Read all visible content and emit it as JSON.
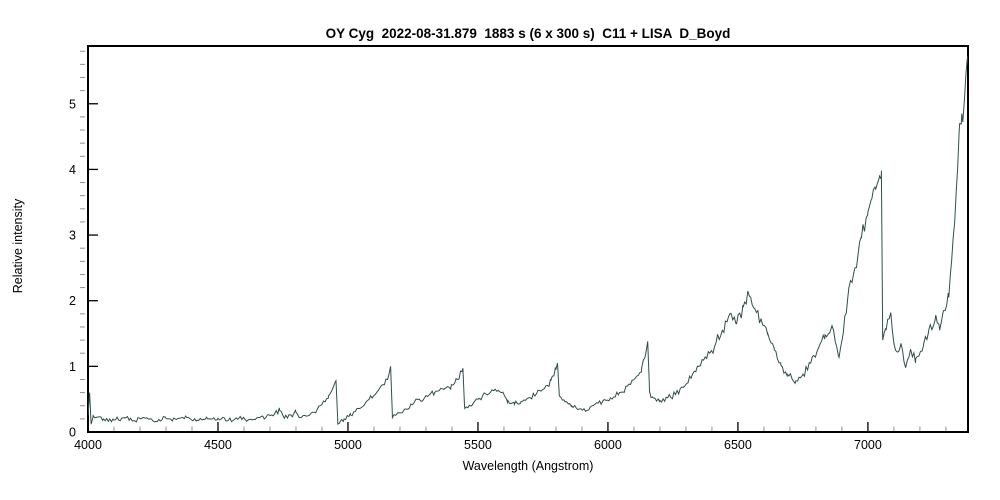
{
  "page": {
    "background": "#ffffff"
  },
  "chart_data": {
    "type": "line",
    "title": "OY Cyg  2022-08-31.879  1883 s (6 x 300 s)  C11 + LISA  D_Boyd",
    "xlabel": "Wavelength (Angstrom)",
    "ylabel": "Relative intensity",
    "xlim": [
      4000,
      7385
    ],
    "ylim": [
      0,
      5.88
    ],
    "x_major_ticks": [
      4000,
      4500,
      5000,
      5500,
      6000,
      6500,
      7000
    ],
    "x_minor_step": 100,
    "y_major_ticks": [
      0,
      1,
      2,
      3,
      4,
      5
    ],
    "y_minor_step": 0.2,
    "grid": false,
    "legend": "none",
    "line_color": "#2f4f4d",
    "frame_color": "#000000",
    "major_tick_color": "#000000",
    "minor_tick_color": "#909090",
    "noise": {
      "base": 0.035,
      "scale": 0.045,
      "max": 0.16,
      "seed": 42,
      "step_angstrom": 6
    },
    "series": [
      {
        "name": "OY Cyg spectrum",
        "points": [
          [
            4000,
            0.25
          ],
          [
            4006,
            0.6
          ],
          [
            4012,
            0.12
          ],
          [
            4020,
            0.25
          ],
          [
            4060,
            0.2
          ],
          [
            4100,
            0.18
          ],
          [
            4140,
            0.22
          ],
          [
            4180,
            0.17
          ],
          [
            4220,
            0.21
          ],
          [
            4260,
            0.16
          ],
          [
            4300,
            0.21
          ],
          [
            4340,
            0.19
          ],
          [
            4380,
            0.22
          ],
          [
            4420,
            0.18
          ],
          [
            4460,
            0.2
          ],
          [
            4500,
            0.21
          ],
          [
            4540,
            0.18
          ],
          [
            4580,
            0.21
          ],
          [
            4620,
            0.19
          ],
          [
            4660,
            0.22
          ],
          [
            4700,
            0.25
          ],
          [
            4737,
            0.33
          ],
          [
            4755,
            0.21
          ],
          [
            4780,
            0.26
          ],
          [
            4800,
            0.3
          ],
          [
            4815,
            0.22
          ],
          [
            4840,
            0.24
          ],
          [
            4870,
            0.3
          ],
          [
            4900,
            0.42
          ],
          [
            4925,
            0.55
          ],
          [
            4945,
            0.7
          ],
          [
            4954,
            0.78
          ],
          [
            4961,
            0.12
          ],
          [
            4970,
            0.16
          ],
          [
            4985,
            0.2
          ],
          [
            5010,
            0.26
          ],
          [
            5040,
            0.36
          ],
          [
            5075,
            0.48
          ],
          [
            5110,
            0.6
          ],
          [
            5140,
            0.72
          ],
          [
            5158,
            0.88
          ],
          [
            5164,
            1.0
          ],
          [
            5171,
            0.22
          ],
          [
            5185,
            0.26
          ],
          [
            5218,
            0.35
          ],
          [
            5256,
            0.46
          ],
          [
            5294,
            0.52
          ],
          [
            5333,
            0.6
          ],
          [
            5371,
            0.66
          ],
          [
            5398,
            0.72
          ],
          [
            5421,
            0.8
          ],
          [
            5438,
            0.92
          ],
          [
            5442,
            0.97
          ],
          [
            5449,
            0.36
          ],
          [
            5470,
            0.4
          ],
          [
            5500,
            0.5
          ],
          [
            5530,
            0.58
          ],
          [
            5560,
            0.63
          ],
          [
            5590,
            0.6
          ],
          [
            5615,
            0.48
          ],
          [
            5640,
            0.42
          ],
          [
            5665,
            0.46
          ],
          [
            5695,
            0.52
          ],
          [
            5725,
            0.58
          ],
          [
            5755,
            0.66
          ],
          [
            5780,
            0.78
          ],
          [
            5800,
            0.95
          ],
          [
            5806,
            1.05
          ],
          [
            5813,
            0.55
          ],
          [
            5835,
            0.46
          ],
          [
            5860,
            0.4
          ],
          [
            5890,
            0.35
          ],
          [
            5920,
            0.33
          ],
          [
            5950,
            0.42
          ],
          [
            5980,
            0.47
          ],
          [
            6010,
            0.52
          ],
          [
            6045,
            0.6
          ],
          [
            6075,
            0.7
          ],
          [
            6105,
            0.82
          ],
          [
            6130,
            0.98
          ],
          [
            6148,
            1.25
          ],
          [
            6153,
            1.38
          ],
          [
            6160,
            0.62
          ],
          [
            6175,
            0.52
          ],
          [
            6200,
            0.48
          ],
          [
            6230,
            0.52
          ],
          [
            6260,
            0.57
          ],
          [
            6290,
            0.68
          ],
          [
            6320,
            0.82
          ],
          [
            6350,
            1.0
          ],
          [
            6380,
            1.12
          ],
          [
            6410,
            1.3
          ],
          [
            6440,
            1.55
          ],
          [
            6474,
            1.8
          ],
          [
            6495,
            1.65
          ],
          [
            6520,
            1.9
          ],
          [
            6543,
            2.08
          ],
          [
            6565,
            1.88
          ],
          [
            6590,
            1.7
          ],
          [
            6615,
            1.5
          ],
          [
            6640,
            1.25
          ],
          [
            6665,
            1.02
          ],
          [
            6690,
            0.88
          ],
          [
            6723,
            0.78
          ],
          [
            6750,
            0.88
          ],
          [
            6780,
            1.05
          ],
          [
            6810,
            1.28
          ],
          [
            6835,
            1.48
          ],
          [
            6862,
            1.62
          ],
          [
            6880,
            1.3
          ],
          [
            6889,
            1.14
          ],
          [
            6905,
            1.5
          ],
          [
            6927,
            2.2
          ],
          [
            6950,
            2.5
          ],
          [
            6975,
            2.95
          ],
          [
            7000,
            3.35
          ],
          [
            7015,
            3.55
          ],
          [
            7030,
            3.7
          ],
          [
            7045,
            3.9
          ],
          [
            7052,
            3.98
          ],
          [
            7057,
            1.4
          ],
          [
            7070,
            1.55
          ],
          [
            7088,
            1.82
          ],
          [
            7100,
            1.35
          ],
          [
            7112,
            1.22
          ],
          [
            7127,
            1.35
          ],
          [
            7146,
            1.0
          ],
          [
            7165,
            1.25
          ],
          [
            7184,
            1.12
          ],
          [
            7215,
            1.35
          ],
          [
            7234,
            1.55
          ],
          [
            7261,
            1.78
          ],
          [
            7276,
            1.55
          ],
          [
            7291,
            1.85
          ],
          [
            7311,
            2.05
          ],
          [
            7322,
            2.6
          ],
          [
            7334,
            3.2
          ],
          [
            7345,
            4.0
          ],
          [
            7353,
            4.7
          ],
          [
            7361,
            4.85
          ],
          [
            7365,
            4.72
          ],
          [
            7372,
            5.1
          ],
          [
            7377,
            5.45
          ],
          [
            7383,
            5.72
          ]
        ]
      }
    ]
  }
}
